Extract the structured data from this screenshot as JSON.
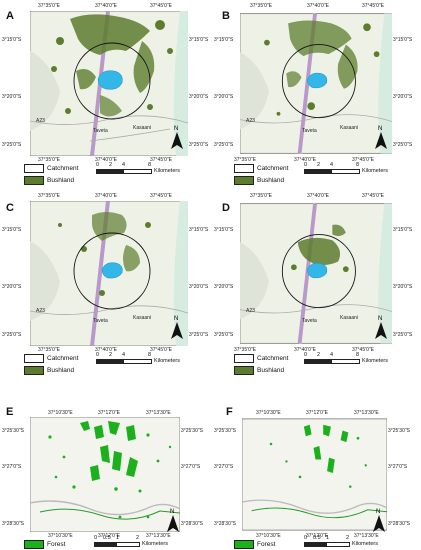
{
  "panels": {
    "A": {
      "letter": "A"
    },
    "B": {
      "letter": "B"
    },
    "C": {
      "letter": "C"
    },
    "D": {
      "letter": "D"
    },
    "E": {
      "letter": "E"
    },
    "F": {
      "letter": "F"
    }
  },
  "kenya": {
    "top_lon": [
      "37°35'0\"E",
      "37°40'0\"E",
      "37°45'0\"E"
    ],
    "bottom_lon": [
      "37°35'0\"E",
      "37°40'0\"E",
      "37°45'0\"E"
    ],
    "left_lat": [
      "3°15'0\"S",
      "3°20'0\"S",
      "3°25'0\"S"
    ],
    "right_lat": [
      "3°15'0\"S",
      "3°20'0\"S",
      "3°25'0\"S"
    ],
    "place_taveta": "Taveta",
    "place_kasaani": "Kasaani",
    "road_a": "A23",
    "legend_catchment": "Catchment",
    "legend_bushland": "Bushland",
    "scale_ticks": [
      "0",
      "2",
      "4",
      "8"
    ],
    "scale_unit": "Kilometers",
    "north": "N"
  },
  "forest": {
    "top_lon": [
      "37°10'30\"E",
      "37°12'0\"E",
      "37°13'30\"E"
    ],
    "bottom_lon": [
      "37°10'30\"E",
      "37°12'0\"E",
      "37°13'30\"E"
    ],
    "left_lat": [
      "3°25'30\"S",
      "3°27'0\"S",
      "3°28'30\"S"
    ],
    "right_lat": [
      "3°25'30\"S",
      "3°27'0\"S",
      "3°28'30\"S"
    ],
    "legend_forest": "Forest",
    "scale_ticks": [
      "0",
      "0.5",
      "1",
      "2"
    ],
    "scale_unit": "Kilometers",
    "north": "N"
  }
}
